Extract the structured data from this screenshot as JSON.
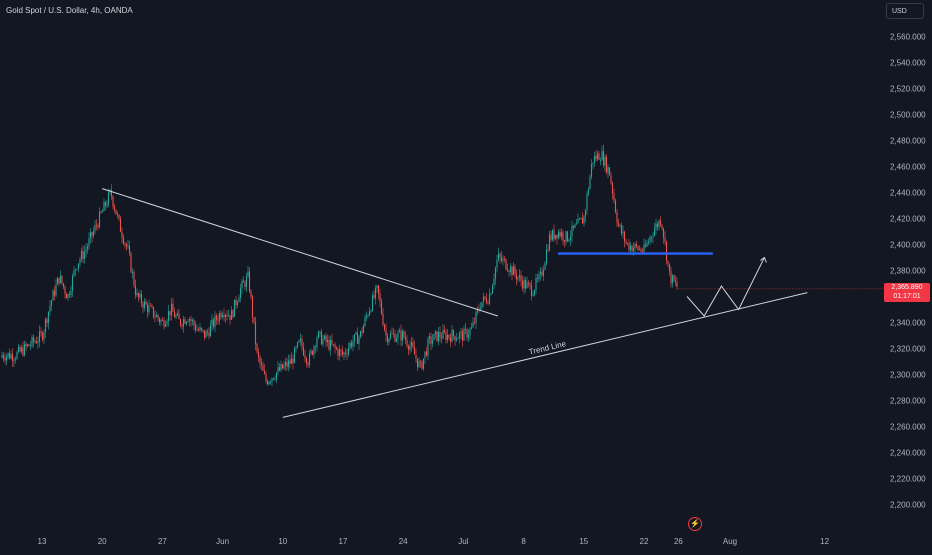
{
  "header": {
    "title": "Gold Spot / U.S. Dollar, 4h, OANDA",
    "currency": "USD"
  },
  "price_tag": {
    "price": "2,365.890",
    "countdown": "01:17:01"
  },
  "annotations": {
    "trend_line_label": "Trend Line",
    "flash_icon": "lightning-icon"
  },
  "colors": {
    "background": "#131722",
    "bull": "#26a69a",
    "bear": "#ef5350",
    "trendline": "#d1d4dc",
    "support_level": "#2962ff",
    "price_tag": "#f23645"
  },
  "chart_data": {
    "type": "candlestick",
    "title": "Gold Spot / U.S. Dollar, 4h, OANDA",
    "ylim": [
      2185,
      2575
    ],
    "y_ticks": [
      2560,
      2540,
      2520,
      2500,
      2480,
      2460,
      2440,
      2420,
      2400,
      2380,
      2360,
      2340,
      2320,
      2300,
      2280,
      2260,
      2240,
      2220,
      2200
    ],
    "y_tick_labels": [
      "2,560.000",
      "2,540.000",
      "2,520.000",
      "2,500.000",
      "2,480.000",
      "2,460.000",
      "2,440.000",
      "2,420.000",
      "2,400.000",
      "2,380.000",
      "2,360.000",
      "2,340.000",
      "2,320.000",
      "2,300.000",
      "2,280.000",
      "2,260.000",
      "2,240.000",
      "2,220.000",
      "2,200.000"
    ],
    "x_tick_labels": [
      "13",
      "20",
      "27",
      "Jun",
      "10",
      "17",
      "24",
      "Jul",
      "8",
      "15",
      "22",
      "26",
      "Aug",
      "12"
    ],
    "x_tick_dates": [
      "2024-05-13",
      "2024-05-20",
      "2024-05-27",
      "2024-06-03",
      "2024-06-10",
      "2024-06-17",
      "2024-06-24",
      "2024-07-01",
      "2024-07-08",
      "2024-07-15",
      "2024-07-22",
      "2024-07-26",
      "2024-08-01",
      "2024-08-12"
    ],
    "price_path": [
      [
        "2024-05-10",
        2315
      ],
      [
        "2024-05-13",
        2330
      ],
      [
        "2024-05-14",
        2355
      ],
      [
        "2024-05-15",
        2375
      ],
      [
        "2024-05-16",
        2360
      ],
      [
        "2024-05-17",
        2385
      ],
      [
        "2024-05-18",
        2395
      ],
      [
        "2024-05-20",
        2425
      ],
      [
        "2024-05-21",
        2440
      ],
      [
        "2024-05-22",
        2415
      ],
      [
        "2024-05-23",
        2395
      ],
      [
        "2024-05-24",
        2360
      ],
      [
        "2024-05-27",
        2340
      ],
      [
        "2024-05-28",
        2350
      ],
      [
        "2024-05-29",
        2340
      ],
      [
        "2024-05-30",
        2345
      ],
      [
        "2024-05-31",
        2335
      ],
      [
        "2024-06-01",
        2330
      ],
      [
        "2024-06-03",
        2350
      ],
      [
        "2024-06-04",
        2345
      ],
      [
        "2024-06-05",
        2365
      ],
      [
        "2024-06-06",
        2375
      ],
      [
        "2024-06-07",
        2315
      ],
      [
        "2024-06-08",
        2295
      ],
      [
        "2024-06-10",
        2305
      ],
      [
        "2024-06-11",
        2310
      ],
      [
        "2024-06-12",
        2325
      ],
      [
        "2024-06-13",
        2310
      ],
      [
        "2024-06-14",
        2330
      ],
      [
        "2024-06-16",
        2320
      ],
      [
        "2024-06-17",
        2315
      ],
      [
        "2024-06-18",
        2325
      ],
      [
        "2024-06-19",
        2330
      ],
      [
        "2024-06-20",
        2350
      ],
      [
        "2024-06-21",
        2365
      ],
      [
        "2024-06-22",
        2330
      ],
      [
        "2024-06-24",
        2330
      ],
      [
        "2024-06-25",
        2320
      ],
      [
        "2024-06-26",
        2305
      ],
      [
        "2024-06-27",
        2325
      ],
      [
        "2024-06-28",
        2330
      ],
      [
        "2024-06-30",
        2330
      ],
      [
        "2024-07-01",
        2330
      ],
      [
        "2024-07-02",
        2335
      ],
      [
        "2024-07-03",
        2355
      ],
      [
        "2024-07-04",
        2360
      ],
      [
        "2024-07-05",
        2390
      ],
      [
        "2024-07-06",
        2385
      ],
      [
        "2024-07-08",
        2370
      ],
      [
        "2024-07-09",
        2365
      ],
      [
        "2024-07-10",
        2375
      ],
      [
        "2024-07-11",
        2405
      ],
      [
        "2024-07-12",
        2410
      ],
      [
        "2024-07-13",
        2405
      ],
      [
        "2024-07-15",
        2420
      ],
      [
        "2024-07-16",
        2465
      ],
      [
        "2024-07-17",
        2470
      ],
      [
        "2024-07-18",
        2455
      ],
      [
        "2024-07-19",
        2415
      ],
      [
        "2024-07-20",
        2400
      ],
      [
        "2024-07-22",
        2395
      ],
      [
        "2024-07-23",
        2410
      ],
      [
        "2024-07-24",
        2420
      ],
      [
        "2024-07-25",
        2375
      ],
      [
        "2024-07-26",
        2366
      ]
    ],
    "lines": [
      {
        "name": "descending line",
        "from": [
          "2024-05-20",
          2443
        ],
        "to": [
          "2024-07-05",
          2345
        ]
      },
      {
        "name": "Trend Line",
        "from": [
          "2024-06-10",
          2267
        ],
        "to": [
          "2024-08-10",
          2363
        ]
      },
      {
        "name": "horizontal level",
        "from": [
          "2024-07-12",
          2393
        ],
        "to": [
          "2024-07-30",
          2393
        ]
      }
    ],
    "projection": [
      [
        "2024-07-27",
        2360
      ],
      [
        "2024-07-29",
        2345
      ],
      [
        "2024-07-31",
        2368
      ],
      [
        "2024-08-02",
        2350
      ],
      [
        "2024-08-05",
        2390
      ]
    ],
    "last_price": 2365.89
  }
}
